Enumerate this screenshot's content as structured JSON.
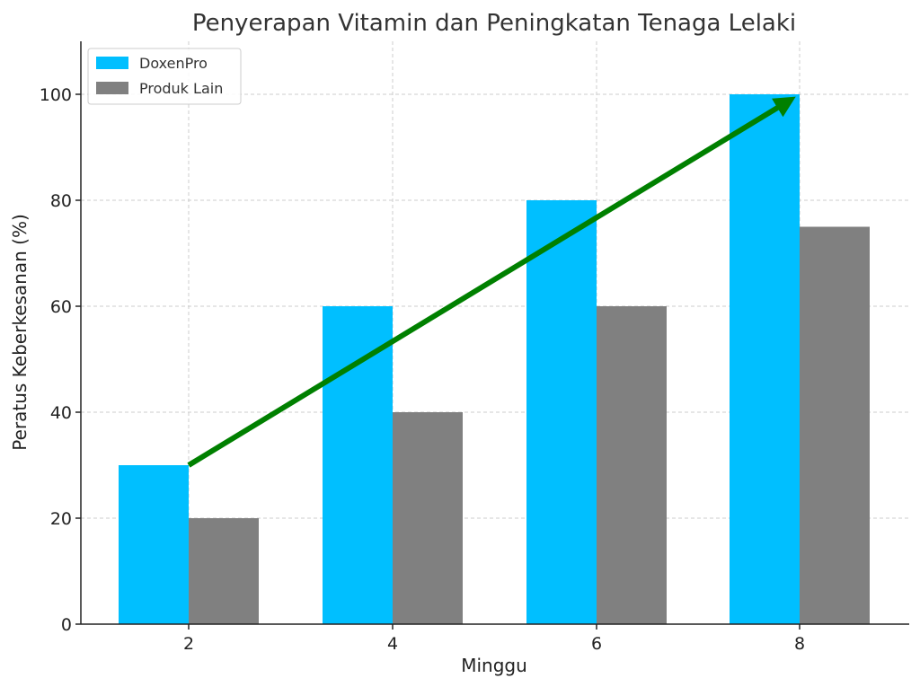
{
  "chart_data": {
    "type": "bar",
    "title": "Penyerapan Vitamin dan Peningkatan Tenaga Lelaki",
    "xlabel": "Minggu",
    "ylabel": "Peratus Keberkesanan (%)",
    "categories": [
      "2",
      "4",
      "6",
      "8"
    ],
    "series": [
      {
        "name": "DoxenPro",
        "values": [
          30,
          60,
          80,
          100
        ],
        "color": "#00bfff"
      },
      {
        "name": "Produk Lain",
        "values": [
          20,
          40,
          60,
          75
        ],
        "color": "#808080"
      }
    ],
    "ylim": [
      0,
      110
    ],
    "yticks": [
      0,
      20,
      40,
      60,
      80,
      100
    ],
    "grid": true,
    "legend_position": "top-left",
    "annotation": {
      "type": "arrow",
      "from": {
        "x": "2",
        "y": 30
      },
      "to": {
        "x": "8",
        "y": 100
      },
      "color": "#008000"
    }
  }
}
